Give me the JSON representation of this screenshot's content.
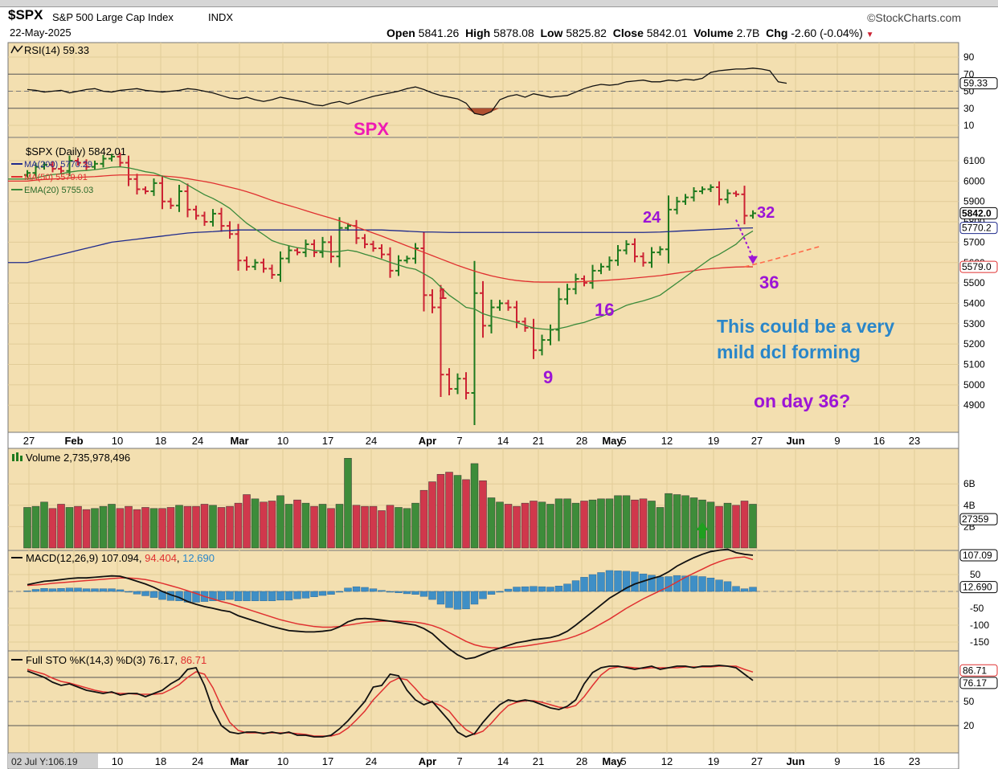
{
  "header": {
    "symbol": "$SPX",
    "name": "S&P 500 Large Cap Index",
    "exchange": "INDX",
    "date": "22-May-2025",
    "brand": "StockCharts.com",
    "quote": {
      "open_label": "Open",
      "open": "5841.26",
      "high_label": "High",
      "high": "5878.08",
      "low_label": "Low",
      "low": "5825.82",
      "close_label": "Close",
      "close": "5842.01",
      "volume_label": "Volume",
      "volume": "2.7B",
      "chg_label": "Chg",
      "chg": "-2.60 (-0.04%)"
    }
  },
  "colors": {
    "panel_bg": "#f3dfb0",
    "up": "#1e7a1e",
    "down": "#cc2233",
    "ma200": "#1f2a8c",
    "ma50": "#e03030",
    "ema20": "#3a8a3a",
    "annot_purple": "#9c14d6",
    "annot_pink": "#ee1bb4",
    "annot_blue": "#2a86c9"
  },
  "chart_data": [
    {
      "type": "line",
      "name_label": "RSI(14) 59.33",
      "yticks": [
        90,
        70,
        50,
        30,
        10
      ],
      "ylim": [
        0,
        100
      ],
      "last_label": "59.33",
      "values": [
        52,
        51,
        49,
        50,
        51,
        48,
        50,
        52,
        53,
        50,
        49,
        51,
        52,
        53,
        51,
        50,
        49,
        50,
        51,
        53,
        52,
        50,
        48,
        45,
        42,
        41,
        43,
        40,
        38,
        40,
        43,
        41,
        39,
        37,
        34,
        33,
        36,
        38,
        35,
        38,
        41,
        44,
        46,
        48,
        50,
        53,
        55,
        52,
        48,
        45,
        43,
        41,
        36,
        24,
        22,
        26,
        40,
        44,
        46,
        43,
        47,
        45,
        43,
        44,
        45,
        49,
        53,
        56,
        58,
        57,
        58,
        61,
        62,
        63,
        61,
        61,
        63,
        62,
        64,
        63,
        65,
        72,
        74,
        75,
        76,
        76,
        77,
        76,
        74,
        61,
        59.33
      ]
    },
    {
      "type": "ohlc",
      "label": "$SPX (Daily) 5842.01",
      "legend": [
        "MA(200) 5770.29",
        "MA(50) 5579.01",
        "EMA(20) 5755.03"
      ],
      "ylim": [
        4800,
        6200
      ],
      "yticks": [
        6100,
        6000,
        5900,
        5800,
        5700,
        5600,
        5500,
        5400,
        5300,
        5200,
        5100,
        5000,
        4900
      ],
      "price_labels": [
        "5842.0",
        "5770.2",
        "5579.0"
      ],
      "closes": [
        6040,
        6070,
        6080,
        6060,
        6050,
        6100,
        6090,
        6070,
        6085,
        6110,
        6120,
        6090,
        6010,
        5960,
        5950,
        5990,
        5900,
        5880,
        5950,
        5860,
        5830,
        5800,
        5840,
        5780,
        5740,
        5610,
        5580,
        5600,
        5570,
        5540,
        5620,
        5660,
        5650,
        5690,
        5650,
        5700,
        5630,
        5770,
        5780,
        5720,
        5690,
        5670,
        5640,
        5560,
        5610,
        5620,
        5670,
        5440,
        5380,
        5050,
        4980,
        5030,
        4960,
        5450,
        5290,
        5380,
        5400,
        5380,
        5310,
        5280,
        5170,
        5220,
        5270,
        5420,
        5470,
        5520,
        5500,
        5560,
        5580,
        5610,
        5660,
        5690,
        5630,
        5600,
        5650,
        5665,
        5860,
        5900,
        5920,
        5950,
        5960,
        5970,
        5910,
        5940,
        5935,
        5830,
        5842
      ],
      "ma200": [
        5600,
        5610,
        5620,
        5630,
        5640,
        5650,
        5660,
        5670,
        5680,
        5690,
        5700,
        5705,
        5710,
        5715,
        5720,
        5725,
        5730,
        5735,
        5740,
        5745,
        5748,
        5750,
        5752,
        5755,
        5757,
        5760,
        5760,
        5760,
        5760,
        5760,
        5760,
        5760,
        5760,
        5760,
        5760,
        5760,
        5760,
        5760,
        5760,
        5760,
        5760,
        5760,
        5760,
        5758,
        5756,
        5754,
        5752,
        5750,
        5750,
        5749,
        5748,
        5748,
        5748,
        5748,
        5748,
        5748,
        5748,
        5748,
        5748,
        5748,
        5748,
        5748,
        5748,
        5748,
        5748,
        5748,
        5748,
        5748,
        5748,
        5748,
        5748,
        5748,
        5748,
        5748,
        5749,
        5750,
        5752,
        5754,
        5756,
        5758,
        5760,
        5762,
        5764,
        5766,
        5768,
        5769,
        5770
      ],
      "ma50": [
        6000,
        6005,
        6008,
        6010,
        6012,
        6015,
        6018,
        6020,
        6022,
        6025,
        6028,
        6030,
        6030,
        6030,
        6030,
        6028,
        6025,
        6022,
        6018,
        6012,
        6005,
        5998,
        5990,
        5980,
        5970,
        5960,
        5948,
        5935,
        5920,
        5905,
        5892,
        5880,
        5868,
        5855,
        5842,
        5830,
        5818,
        5805,
        5790,
        5775,
        5760,
        5745,
        5730,
        5714,
        5698,
        5682,
        5666,
        5650,
        5634,
        5618,
        5602,
        5586,
        5572,
        5558,
        5546,
        5535,
        5526,
        5518,
        5512,
        5508,
        5505,
        5504,
        5504,
        5504,
        5504,
        5505,
        5507,
        5509,
        5511,
        5514,
        5517,
        5520,
        5524,
        5528,
        5532,
        5536,
        5542,
        5548,
        5554,
        5560,
        5566,
        5570,
        5573,
        5576,
        5578,
        5579,
        5579
      ],
      "ema20": [
        6010,
        6015,
        6025,
        6032,
        6036,
        6044,
        6050,
        6052,
        6056,
        6061,
        6068,
        6070,
        6065,
        6056,
        6046,
        6040,
        6024,
        6009,
        6004,
        5981,
        5957,
        5933,
        5915,
        5892,
        5866,
        5829,
        5793,
        5765,
        5737,
        5708,
        5693,
        5683,
        5673,
        5668,
        5659,
        5657,
        5652,
        5655,
        5661,
        5654,
        5641,
        5629,
        5616,
        5601,
        5588,
        5575,
        5567,
        5545,
        5521,
        5480,
        5440,
        5411,
        5380,
        5372,
        5349,
        5336,
        5327,
        5317,
        5306,
        5292,
        5279,
        5274,
        5271,
        5276,
        5285,
        5297,
        5306,
        5321,
        5335,
        5351,
        5370,
        5390,
        5402,
        5412,
        5425,
        5440,
        5470,
        5500,
        5530,
        5560,
        5590,
        5620,
        5640,
        5665,
        5690,
        5730,
        5755
      ],
      "projection_dashed": [
        [
          85,
          5579
        ],
        [
          88,
          5610
        ],
        [
          91,
          5645
        ],
        [
          94,
          5680
        ]
      ],
      "projection_arrow": [
        [
          84,
          5810
        ],
        [
          86,
          5600
        ]
      ]
    },
    {
      "type": "bar",
      "label": "Volume 2,735,978,496",
      "yticks": [
        "6B",
        "4B",
        "2B"
      ],
      "last_label": "27359",
      "values": [
        3.8,
        3.9,
        4.3,
        3.7,
        4.1,
        3.8,
        3.9,
        3.6,
        3.7,
        3.9,
        4.1,
        3.7,
        3.9,
        3.6,
        3.8,
        3.7,
        3.7,
        3.8,
        4.0,
        3.9,
        3.9,
        4.1,
        4.0,
        3.8,
        3.9,
        4.2,
        5.0,
        4.6,
        4.3,
        4.4,
        4.9,
        4.1,
        4.5,
        4.2,
        3.9,
        4.1,
        3.7,
        4.1,
        8.4,
        4.0,
        3.9,
        3.9,
        3.5,
        4.0,
        3.8,
        3.7,
        4.2,
        5.4,
        6.2,
        6.9,
        7.1,
        6.8,
        6.4,
        7.9,
        6.3,
        4.7,
        4.3,
        4.1,
        3.9,
        4.2,
        4.4,
        4.3,
        4.1,
        4.6,
        4.6,
        4.2,
        4.4,
        4.5,
        4.6,
        4.6,
        4.9,
        4.9,
        4.5,
        4.6,
        4.4,
        3.8,
        5.1,
        5.0,
        4.9,
        4.7,
        4.5,
        4.3,
        3.9,
        4.2,
        4.0,
        4.4,
        4.1
      ],
      "annotation": "up-arrow"
    },
    {
      "type": "line",
      "name": "MACD(12,26,9) 107.094",
      "signal_label": "94.404",
      "hist_label": "12.690",
      "yticks": [
        "50",
        "-50",
        "-100",
        "-150"
      ],
      "price_labels": [
        "107.09",
        "12.690"
      ],
      "macd": [
        20,
        25,
        30,
        32,
        35,
        38,
        40,
        40,
        42,
        44,
        46,
        45,
        38,
        30,
        22,
        12,
        0,
        -10,
        -18,
        -30,
        -38,
        -45,
        -50,
        -56,
        -60,
        -72,
        -80,
        -88,
        -96,
        -104,
        -110,
        -116,
        -118,
        -120,
        -120,
        -118,
        -115,
        -105,
        -90,
        -82,
        -80,
        -82,
        -85,
        -88,
        -92,
        -96,
        -100,
        -110,
        -125,
        -148,
        -170,
        -188,
        -200,
        -196,
        -186,
        -176,
        -168,
        -160,
        -152,
        -148,
        -143,
        -140,
        -137,
        -130,
        -118,
        -100,
        -80,
        -60,
        -40,
        -20,
        -5,
        10,
        22,
        30,
        38,
        45,
        58,
        75,
        88,
        100,
        110,
        118,
        122,
        125,
        115,
        110,
        107.094
      ],
      "signal": [
        18,
        19,
        21,
        24,
        26,
        28,
        30,
        32,
        34,
        36,
        38,
        40,
        40,
        38,
        35,
        30,
        24,
        17,
        10,
        2,
        -6,
        -15,
        -22,
        -30,
        -36,
        -44,
        -52,
        -60,
        -68,
        -76,
        -84,
        -90,
        -96,
        -100,
        -104,
        -106,
        -106,
        -104,
        -100,
        -96,
        -92,
        -90,
        -88,
        -88,
        -88,
        -89,
        -91,
        -95,
        -101,
        -110,
        -122,
        -135,
        -148,
        -158,
        -164,
        -167,
        -168,
        -167,
        -165,
        -162,
        -158,
        -154,
        -150,
        -146,
        -140,
        -132,
        -122,
        -110,
        -96,
        -82,
        -66,
        -50,
        -36,
        -22,
        -10,
        2,
        14,
        28,
        42,
        54,
        66,
        78,
        88,
        96,
        100,
        102,
        94.404
      ],
      "hist": [
        2,
        6,
        9,
        8,
        9,
        10,
        10,
        8,
        8,
        8,
        8,
        5,
        -2,
        -8,
        -13,
        -18,
        -24,
        -27,
        -28,
        -32,
        -32,
        -30,
        -28,
        -26,
        -24,
        -28,
        -28,
        -28,
        -28,
        -28,
        -26,
        -26,
        -22,
        -20,
        -16,
        -12,
        -9,
        -1,
        10,
        14,
        12,
        8,
        3,
        0,
        -4,
        -7,
        -9,
        -15,
        -24,
        -38,
        -48,
        -53,
        -52,
        -38,
        -22,
        -9,
        0,
        7,
        13,
        14,
        15,
        14,
        13,
        16,
        22,
        32,
        42,
        50,
        56,
        62,
        61,
        60,
        58,
        52,
        48,
        43,
        44,
        47,
        46,
        46,
        44,
        40,
        34,
        29,
        15,
        8,
        12.69
      ]
    },
    {
      "type": "line",
      "name": "Full STO %K(14,3) %D(3) 76.17, 86.71",
      "k_label": "76.17",
      "d_label": "86.71",
      "yticks": [
        "50",
        "20"
      ],
      "price_labels": [
        "86.71",
        "76.17"
      ],
      "k": [
        88,
        84,
        80,
        74,
        70,
        72,
        68,
        64,
        62,
        60,
        62,
        58,
        60,
        60,
        56,
        60,
        64,
        72,
        78,
        90,
        92,
        70,
        40,
        20,
        12,
        10,
        12,
        12,
        10,
        12,
        10,
        12,
        8,
        8,
        6,
        6,
        8,
        16,
        26,
        38,
        50,
        68,
        70,
        84,
        82,
        64,
        52,
        46,
        50,
        38,
        26,
        12,
        6,
        10,
        24,
        36,
        46,
        52,
        50,
        52,
        50,
        46,
        42,
        40,
        44,
        52,
        72,
        86,
        92,
        94,
        94,
        92,
        90,
        92,
        94,
        90,
        92,
        94,
        94,
        92,
        94,
        94,
        95,
        94,
        92,
        84,
        76.17
      ],
      "d": [
        90,
        87,
        84,
        79,
        75,
        73,
        70,
        67,
        64,
        62,
        61,
        60,
        60,
        59,
        59,
        59,
        60,
        65,
        71,
        80,
        87,
        84,
        67,
        44,
        24,
        14,
        11,
        11,
        11,
        11,
        11,
        11,
        10,
        9,
        7,
        7,
        7,
        10,
        17,
        27,
        38,
        52,
        63,
        74,
        79,
        77,
        66,
        54,
        49,
        45,
        38,
        25,
        15,
        9,
        13,
        23,
        35,
        45,
        49,
        51,
        51,
        49,
        46,
        43,
        42,
        45,
        56,
        70,
        83,
        91,
        93,
        93,
        92,
        91,
        92,
        92,
        92,
        92,
        93,
        93,
        93,
        93,
        94,
        94,
        94,
        90,
        86.71
      ]
    }
  ],
  "x_axis": {
    "labels_top": [
      "27",
      "Feb",
      "10",
      "18",
      "24",
      "Mar",
      "10",
      "17",
      "24",
      "Apr",
      "7",
      "14",
      "21",
      "28",
      "May",
      "5",
      "12",
      "19",
      "27",
      "Jun",
      "9",
      "16",
      "23"
    ],
    "labels_bottom": [
      "02 Jul Y:106.19",
      "10",
      "18",
      "24",
      "Mar",
      "10",
      "17",
      "24",
      "Apr",
      "7",
      "14",
      "21",
      "28",
      "May",
      "5",
      "12",
      "19",
      "27",
      "Jun",
      "9",
      "16",
      "23"
    ]
  },
  "annotations": {
    "spx": "SPX",
    "n24": "24",
    "n32": "32",
    "n36": "36",
    "n16": "16",
    "n9": "9",
    "n1": "1",
    "note_line1": "This could be a very",
    "note_line2": "mild dcl forming",
    "note_line3": "on day 36?"
  }
}
